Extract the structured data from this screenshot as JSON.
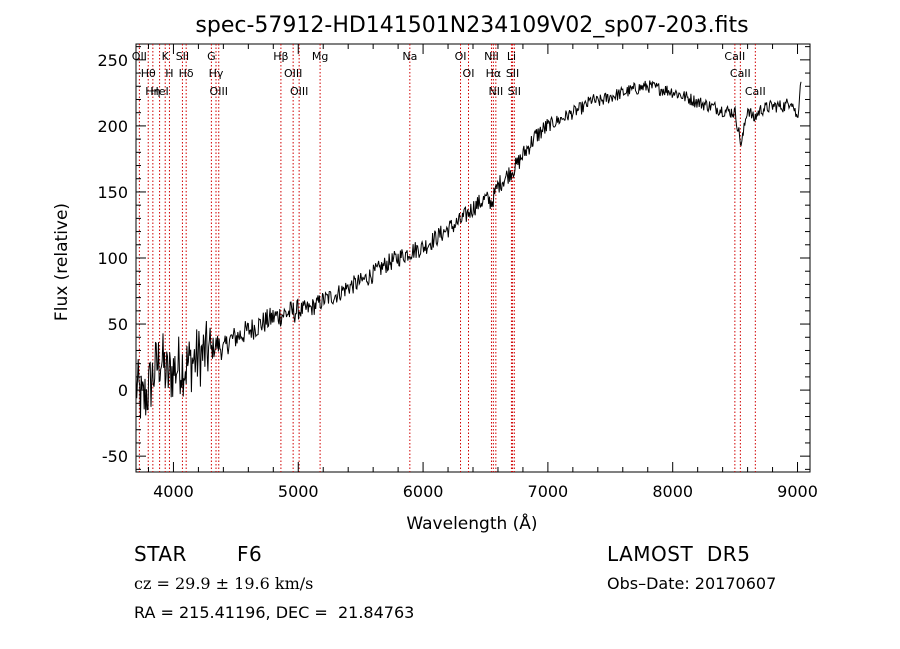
{
  "chart_data": {
    "type": "line",
    "title": "spec-57912-HD141501N234109V02_sp07-203.fits",
    "xlabel": "Wavelength (Å)",
    "ylabel": "Flux (relative)",
    "xlim": [
      3700,
      9100
    ],
    "ylim": [
      -62,
      262
    ],
    "xticks": [
      4000,
      5000,
      6000,
      7000,
      8000,
      9000
    ],
    "yticks": [
      -50,
      0,
      50,
      100,
      150,
      200,
      250
    ],
    "grid": false,
    "series": [
      {
        "x": [
          3700,
          3750,
          3800,
          3850,
          3900,
          3950,
          4000,
          4050,
          4100,
          4150,
          4200,
          4250,
          4300,
          4350,
          4400,
          4450,
          4500,
          4600,
          4700,
          4800,
          4900,
          5000,
          5100,
          5200,
          5300,
          5400,
          5500,
          5600,
          5700,
          5800,
          5900,
          6000,
          6100,
          6200,
          6300,
          6400,
          6500,
          6550,
          6600,
          6650,
          6700,
          6750,
          6800,
          6900,
          7000,
          7100,
          7200,
          7300,
          7350,
          7400,
          7500,
          7600,
          7700,
          7800,
          7900,
          8000,
          8100,
          8200,
          8300,
          8400,
          8500,
          8550,
          8600,
          8650,
          8700,
          8800,
          8900,
          8950,
          9000,
          9030
        ],
        "y": [
          5,
          -10,
          0,
          15,
          25,
          10,
          15,
          20,
          18,
          22,
          25,
          28,
          30,
          35,
          30,
          38,
          40,
          45,
          50,
          55,
          58,
          60,
          62,
          68,
          72,
          78,
          82,
          88,
          95,
          100,
          105,
          108,
          115,
          122,
          128,
          138,
          145,
          142,
          155,
          160,
          165,
          170,
          178,
          192,
          200,
          205,
          210,
          215,
          220,
          218,
          222,
          225,
          228,
          230,
          228,
          226,
          222,
          218,
          215,
          212,
          210,
          185,
          214,
          205,
          212,
          215,
          215,
          220,
          205,
          240
        ]
      }
    ],
    "lines": [
      {
        "label": "OII",
        "x": 3727
      },
      {
        "label": "Hθ",
        "x": 3798
      },
      {
        "label": "Hη",
        "x": 3835
      },
      {
        "label": "HeI",
        "x": 3889
      },
      {
        "label": "K",
        "x": 3934
      },
      {
        "label": "H",
        "x": 3968
      },
      {
        "label": "SII",
        "x": 4072
      },
      {
        "label": "Hδ",
        "x": 4102
      },
      {
        "label": "G",
        "x": 4304
      },
      {
        "label": "Hγ",
        "x": 4341
      },
      {
        "label": "OIII",
        "x": 4363
      },
      {
        "label": "Hβ",
        "x": 4861
      },
      {
        "label": "OIII",
        "x": 4959
      },
      {
        "label": "OIII",
        "x": 5007
      },
      {
        "label": "Mg",
        "x": 5175
      },
      {
        "label": "Na",
        "x": 5894
      },
      {
        "label": "OI",
        "x": 6300
      },
      {
        "label": "OI",
        "x": 6364
      },
      {
        "label": "NII",
        "x": 6548
      },
      {
        "label": "Hα",
        "x": 6563
      },
      {
        "label": "NII",
        "x": 6583
      },
      {
        "label": "Li",
        "x": 6708
      },
      {
        "label": "SII",
        "x": 6717
      },
      {
        "label": "SII",
        "x": 6731
      },
      {
        "label": "CaII",
        "x": 8498
      },
      {
        "label": "CaII",
        "x": 8542
      },
      {
        "label": "CaII",
        "x": 8662
      }
    ]
  },
  "info": {
    "object_class": "STAR",
    "subclass": "F6",
    "survey": "LAMOST  DR5",
    "velocity": "cz = 29.9 ± 19.6 km/s",
    "obs_date": "Obs–Date: 20170607",
    "coords": "RA = 215.41196, DEC =  21.84763"
  }
}
